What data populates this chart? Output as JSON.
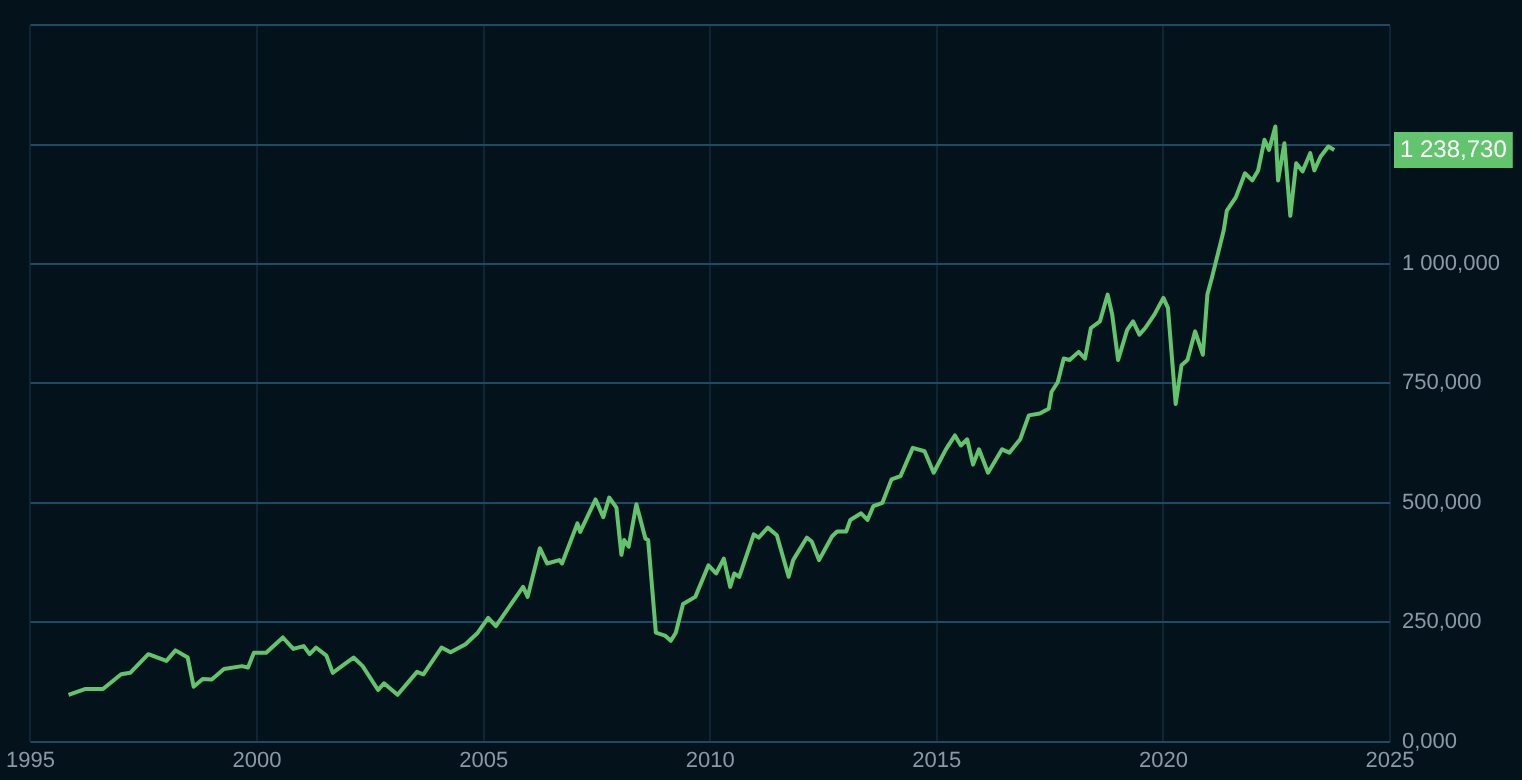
{
  "chart_data": {
    "type": "line",
    "legend": false,
    "grid": true,
    "marker": "none",
    "line_style": "solid",
    "x": [
      1995.84,
      1996.2,
      1996.6,
      1997.0,
      1997.2,
      1997.6,
      1998.0,
      1998.2,
      1998.47,
      1998.6,
      1998.8,
      1999.0,
      1999.27,
      1999.67,
      1999.8,
      1999.93,
      2000.2,
      2000.57,
      2000.8,
      2001.03,
      2001.16,
      2001.3,
      2001.53,
      2001.67,
      2001.93,
      2002.13,
      2002.33,
      2002.67,
      2002.8,
      2003.1,
      2003.53,
      2003.67,
      2004.07,
      2004.27,
      2004.6,
      2004.87,
      2005.1,
      2005.27,
      2005.87,
      2005.97,
      2006.24,
      2006.4,
      2006.67,
      2006.73,
      2007.07,
      2007.13,
      2007.47,
      2007.64,
      2007.77,
      2007.93,
      2008.04,
      2008.1,
      2008.2,
      2008.37,
      2008.57,
      2008.63,
      2008.8,
      2009.0,
      2009.13,
      2009.24,
      2009.4,
      2009.67,
      2009.96,
      2010.13,
      2010.3,
      2010.44,
      2010.53,
      2010.64,
      2010.96,
      2011.07,
      2011.27,
      2011.47,
      2011.73,
      2011.83,
      2012.13,
      2012.24,
      2012.4,
      2012.69,
      2012.8,
      2013.0,
      2013.09,
      2013.33,
      2013.47,
      2013.6,
      2013.8,
      2014.0,
      2014.2,
      2014.47,
      2014.73,
      2014.93,
      2015.2,
      2015.4,
      2015.53,
      2015.67,
      2015.8,
      2015.93,
      2016.13,
      2016.44,
      2016.6,
      2016.84,
      2017.03,
      2017.27,
      2017.47,
      2017.53,
      2017.67,
      2017.8,
      2017.93,
      2018.13,
      2018.27,
      2018.4,
      2018.6,
      2018.77,
      2018.87,
      2019.0,
      2019.2,
      2019.33,
      2019.47,
      2019.6,
      2019.8,
      2020.0,
      2020.1,
      2020.27,
      2020.4,
      2020.53,
      2020.7,
      2020.87,
      2020.97,
      2021.07,
      2021.33,
      2021.4,
      2021.6,
      2021.8,
      2021.96,
      2022.09,
      2022.23,
      2022.33,
      2022.47,
      2022.53,
      2022.67,
      2022.8,
      2022.93,
      2023.07,
      2023.24,
      2023.33,
      2023.47,
      2023.64,
      2023.77
    ],
    "series": [
      {
        "color": "#63c46e",
        "values": [
          98000,
          110000,
          110000,
          141000,
          144000,
          183000,
          169000,
          191000,
          176000,
          115000,
          131000,
          130000,
          152000,
          158000,
          155000,
          186000,
          186000,
          218000,
          194000,
          200000,
          183000,
          197000,
          180000,
          144000,
          162000,
          176000,
          158000,
          108000,
          122000,
          98000,
          146000,
          141000,
          197000,
          187000,
          204000,
          228000,
          259000,
          242000,
          324000,
          303000,
          405000,
          373000,
          380000,
          373000,
          457000,
          439000,
          507000,
          470000,
          511000,
          490000,
          391000,
          422000,
          408000,
          497000,
          425000,
          422000,
          228000,
          222000,
          211000,
          228000,
          288000,
          303000,
          369000,
          352000,
          383000,
          324000,
          352000,
          345000,
          434000,
          427000,
          448000,
          432000,
          345000,
          380000,
          427000,
          419000,
          380000,
          430000,
          440000,
          440000,
          464000,
          478000,
          464000,
          493000,
          500000,
          549000,
          556000,
          615000,
          608000,
          563000,
          612000,
          641000,
          620000,
          633000,
          580000,
          612000,
          563000,
          612000,
          605000,
          633000,
          683000,
          687000,
          697000,
          732000,
          753000,
          802000,
          799000,
          816000,
          802000,
          866000,
          880000,
          936000,
          894000,
          799000,
          862000,
          880000,
          852000,
          866000,
          894000,
          929000,
          908000,
          707000,
          788000,
          799000,
          859000,
          810000,
          936000,
          971000,
          1070000,
          1112000,
          1140000,
          1190000,
          1175000,
          1196000,
          1260000,
          1239000,
          1288000,
          1175000,
          1253000,
          1101000,
          1211000,
          1194000,
          1232000,
          1196000,
          1225000,
          1246000,
          1238730
        ]
      }
    ],
    "xlim": [
      1995,
      2025
    ],
    "xticks": [
      1995,
      2000,
      2005,
      2010,
      2015,
      2020,
      2025
    ],
    "ylim": [
      0,
      1500000
    ],
    "yticks": [
      {
        "value": 0,
        "label": "0,000"
      },
      {
        "value": 250000,
        "label": "250,000"
      },
      {
        "value": 500000,
        "label": "500,000"
      },
      {
        "value": 750000,
        "label": "750,000"
      },
      {
        "value": 1000000,
        "label": "1 000,000"
      },
      {
        "value": 1250000,
        "label": null
      },
      {
        "value": 1500000,
        "label": null
      }
    ],
    "annotations": [
      {
        "text": "1 238,730",
        "x": 2023.77,
        "y": 1238730
      }
    ]
  }
}
